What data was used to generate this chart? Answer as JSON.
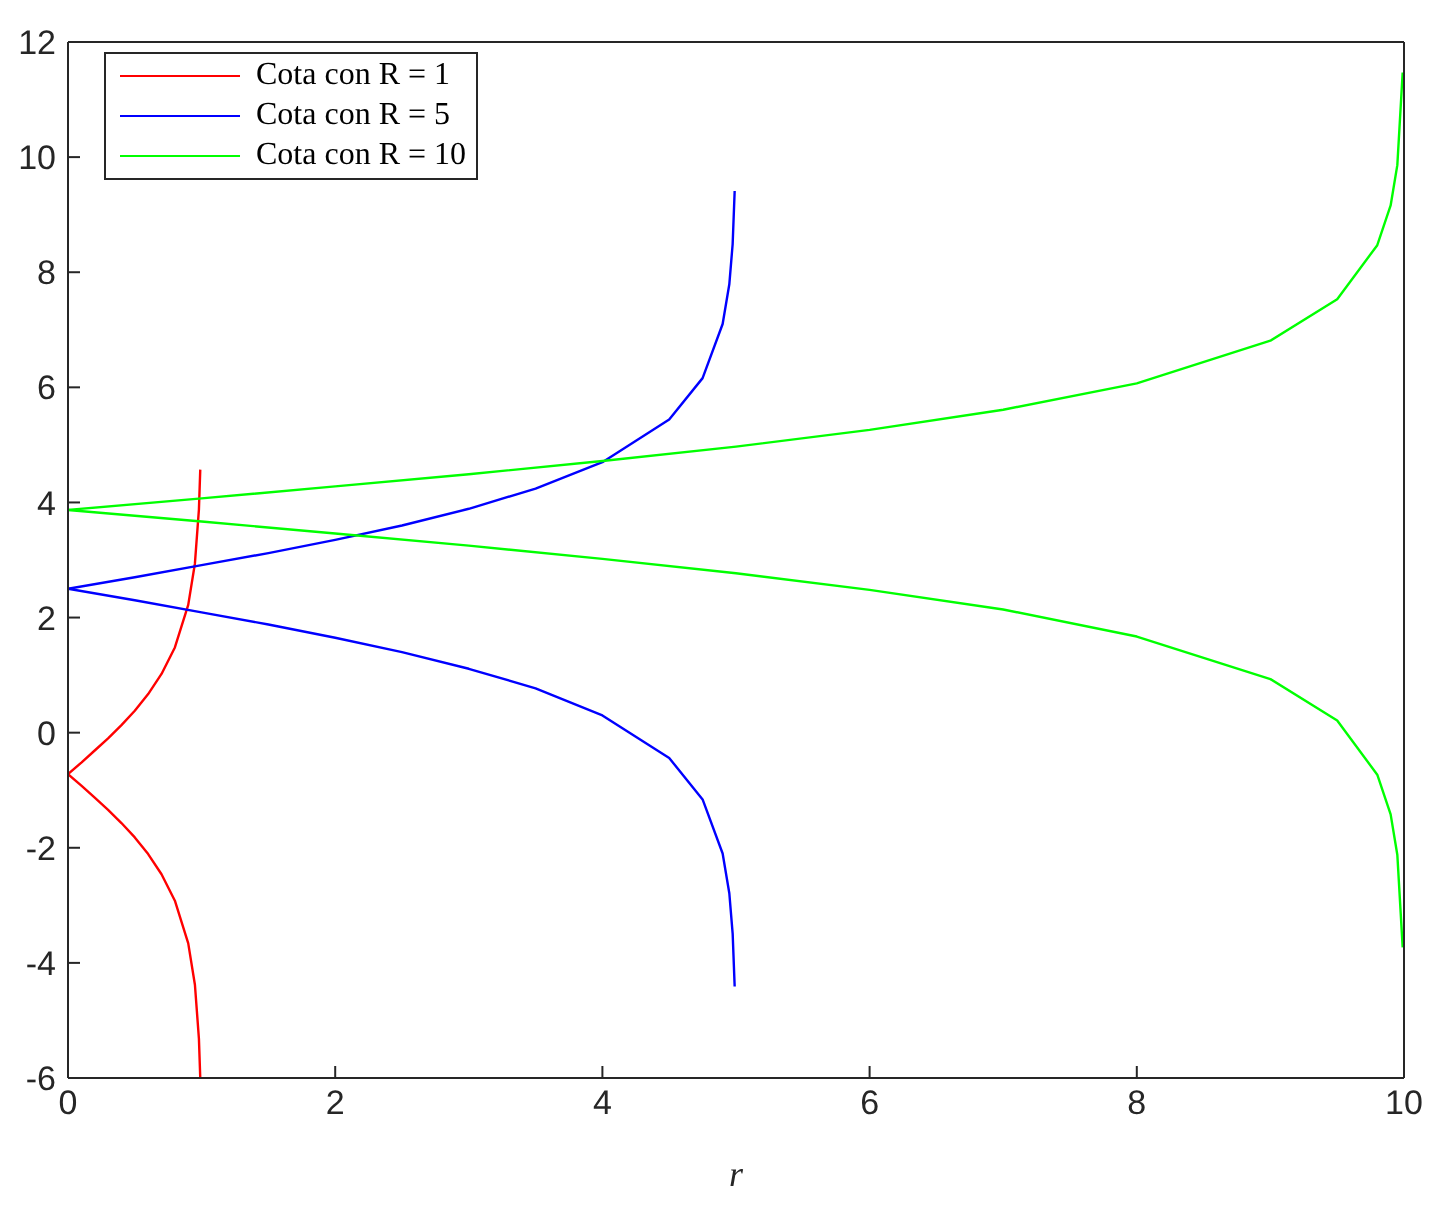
{
  "chart_data": {
    "type": "line",
    "xlabel": "r",
    "xlim": [
      0,
      10
    ],
    "xticks": [
      0,
      2,
      4,
      6,
      8,
      10
    ],
    "ylim": [
      -6,
      12
    ],
    "yticks": [
      -6,
      -4,
      -2,
      0,
      2,
      4,
      6,
      8,
      10,
      12
    ],
    "legend": "top left",
    "marker": "none",
    "line_style": "solid",
    "series": [
      {
        "name": "Cota con R = 1",
        "color": "#ff0000",
        "x": [
          0,
          0.1,
          0.2,
          0.3,
          0.4,
          0.5,
          0.6,
          0.7,
          0.8,
          0.9,
          0.95,
          0.98,
          0.99
        ],
        "values": [
          -0.72,
          -0.52,
          -0.31,
          -0.1,
          0.13,
          0.38,
          0.67,
          1.02,
          1.48,
          2.22,
          2.94,
          3.88,
          4.57
        ]
      },
      {
        "color": "#ff0000",
        "x": [
          0,
          0.1,
          0.2,
          0.3,
          0.4,
          0.5,
          0.6,
          0.7,
          0.8,
          0.9,
          0.95,
          0.98,
          0.99
        ],
        "values": [
          -0.72,
          -0.92,
          -1.13,
          -1.34,
          -1.57,
          -1.82,
          -2.11,
          -2.46,
          -2.92,
          -3.66,
          -4.38,
          -5.32,
          -6
        ]
      },
      {
        "name": "Cota con R = 5",
        "color": "#0000ff",
        "x": [
          0,
          0.5,
          1,
          1.5,
          2,
          2.5,
          3,
          3.5,
          4,
          4.5,
          4.75,
          4.9,
          4.95,
          4.975,
          4.99
        ],
        "values": [
          2.5,
          2.7,
          2.91,
          3.12,
          3.35,
          3.6,
          3.89,
          4.24,
          4.7,
          5.44,
          6.16,
          7.1,
          7.79,
          8.49,
          9.41
        ]
      },
      {
        "color": "#0000ff",
        "x": [
          0,
          0.5,
          1,
          1.5,
          2,
          2.5,
          3,
          3.5,
          4,
          4.5,
          4.75,
          4.9,
          4.95,
          4.975,
          4.99
        ],
        "values": [
          2.5,
          2.3,
          2.09,
          1.88,
          1.65,
          1.4,
          1.11,
          0.77,
          0.3,
          -0.44,
          -1.16,
          -2.1,
          -2.79,
          -3.49,
          -4.41
        ]
      },
      {
        "name": "Cota con R = 10",
        "color": "#00ff00",
        "x": [
          0,
          1,
          2,
          3,
          4,
          5,
          6,
          7,
          8,
          9,
          9.5,
          9.8,
          9.9,
          9.95,
          9.99
        ],
        "values": [
          3.87,
          4.07,
          4.28,
          4.49,
          4.72,
          4.97,
          5.26,
          5.61,
          6.07,
          6.81,
          7.53,
          8.47,
          9.16,
          9.86,
          11.47
        ]
      },
      {
        "color": "#00ff00",
        "x": [
          0,
          1,
          2,
          3,
          4,
          5,
          6,
          7,
          8,
          9,
          9.5,
          9.8,
          9.9,
          9.95,
          9.99
        ],
        "values": [
          3.87,
          3.67,
          3.46,
          3.25,
          3.02,
          2.77,
          2.48,
          2.14,
          1.67,
          0.93,
          0.21,
          -0.73,
          -1.42,
          -2.12,
          -3.73
        ]
      }
    ]
  }
}
